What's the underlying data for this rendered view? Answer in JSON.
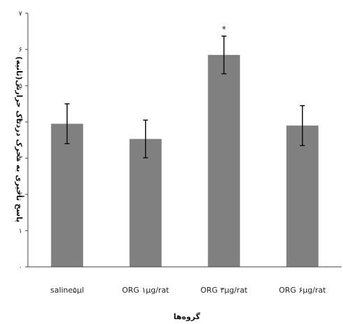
{
  "chart_data": {
    "type": "bar",
    "categories": [
      "saline۵µl",
      "ORG ۱µg/rat",
      "ORG ۳µg/rat",
      "ORG ۶µg/rat"
    ],
    "values": [
      3.95,
      3.53,
      5.85,
      3.9
    ],
    "error": [
      0.55,
      0.52,
      0.52,
      0.55
    ],
    "annotations": [
      "",
      "",
      "*",
      ""
    ],
    "ylim": [
      0,
      7
    ],
    "yticks": [
      0,
      1,
      2,
      3,
      4,
      5,
      6,
      7
    ],
    "ytick_labels": [
      "۰",
      "۱",
      "۲",
      "۳",
      "۴",
      "۵",
      "۶",
      "۷"
    ],
    "xlabel": "گروه‌ها",
    "ylabel": "پاسخ تأخیری به محرک دردناک حرارتی(ثانیه)",
    "grid": false,
    "bar_color": "#808080"
  }
}
